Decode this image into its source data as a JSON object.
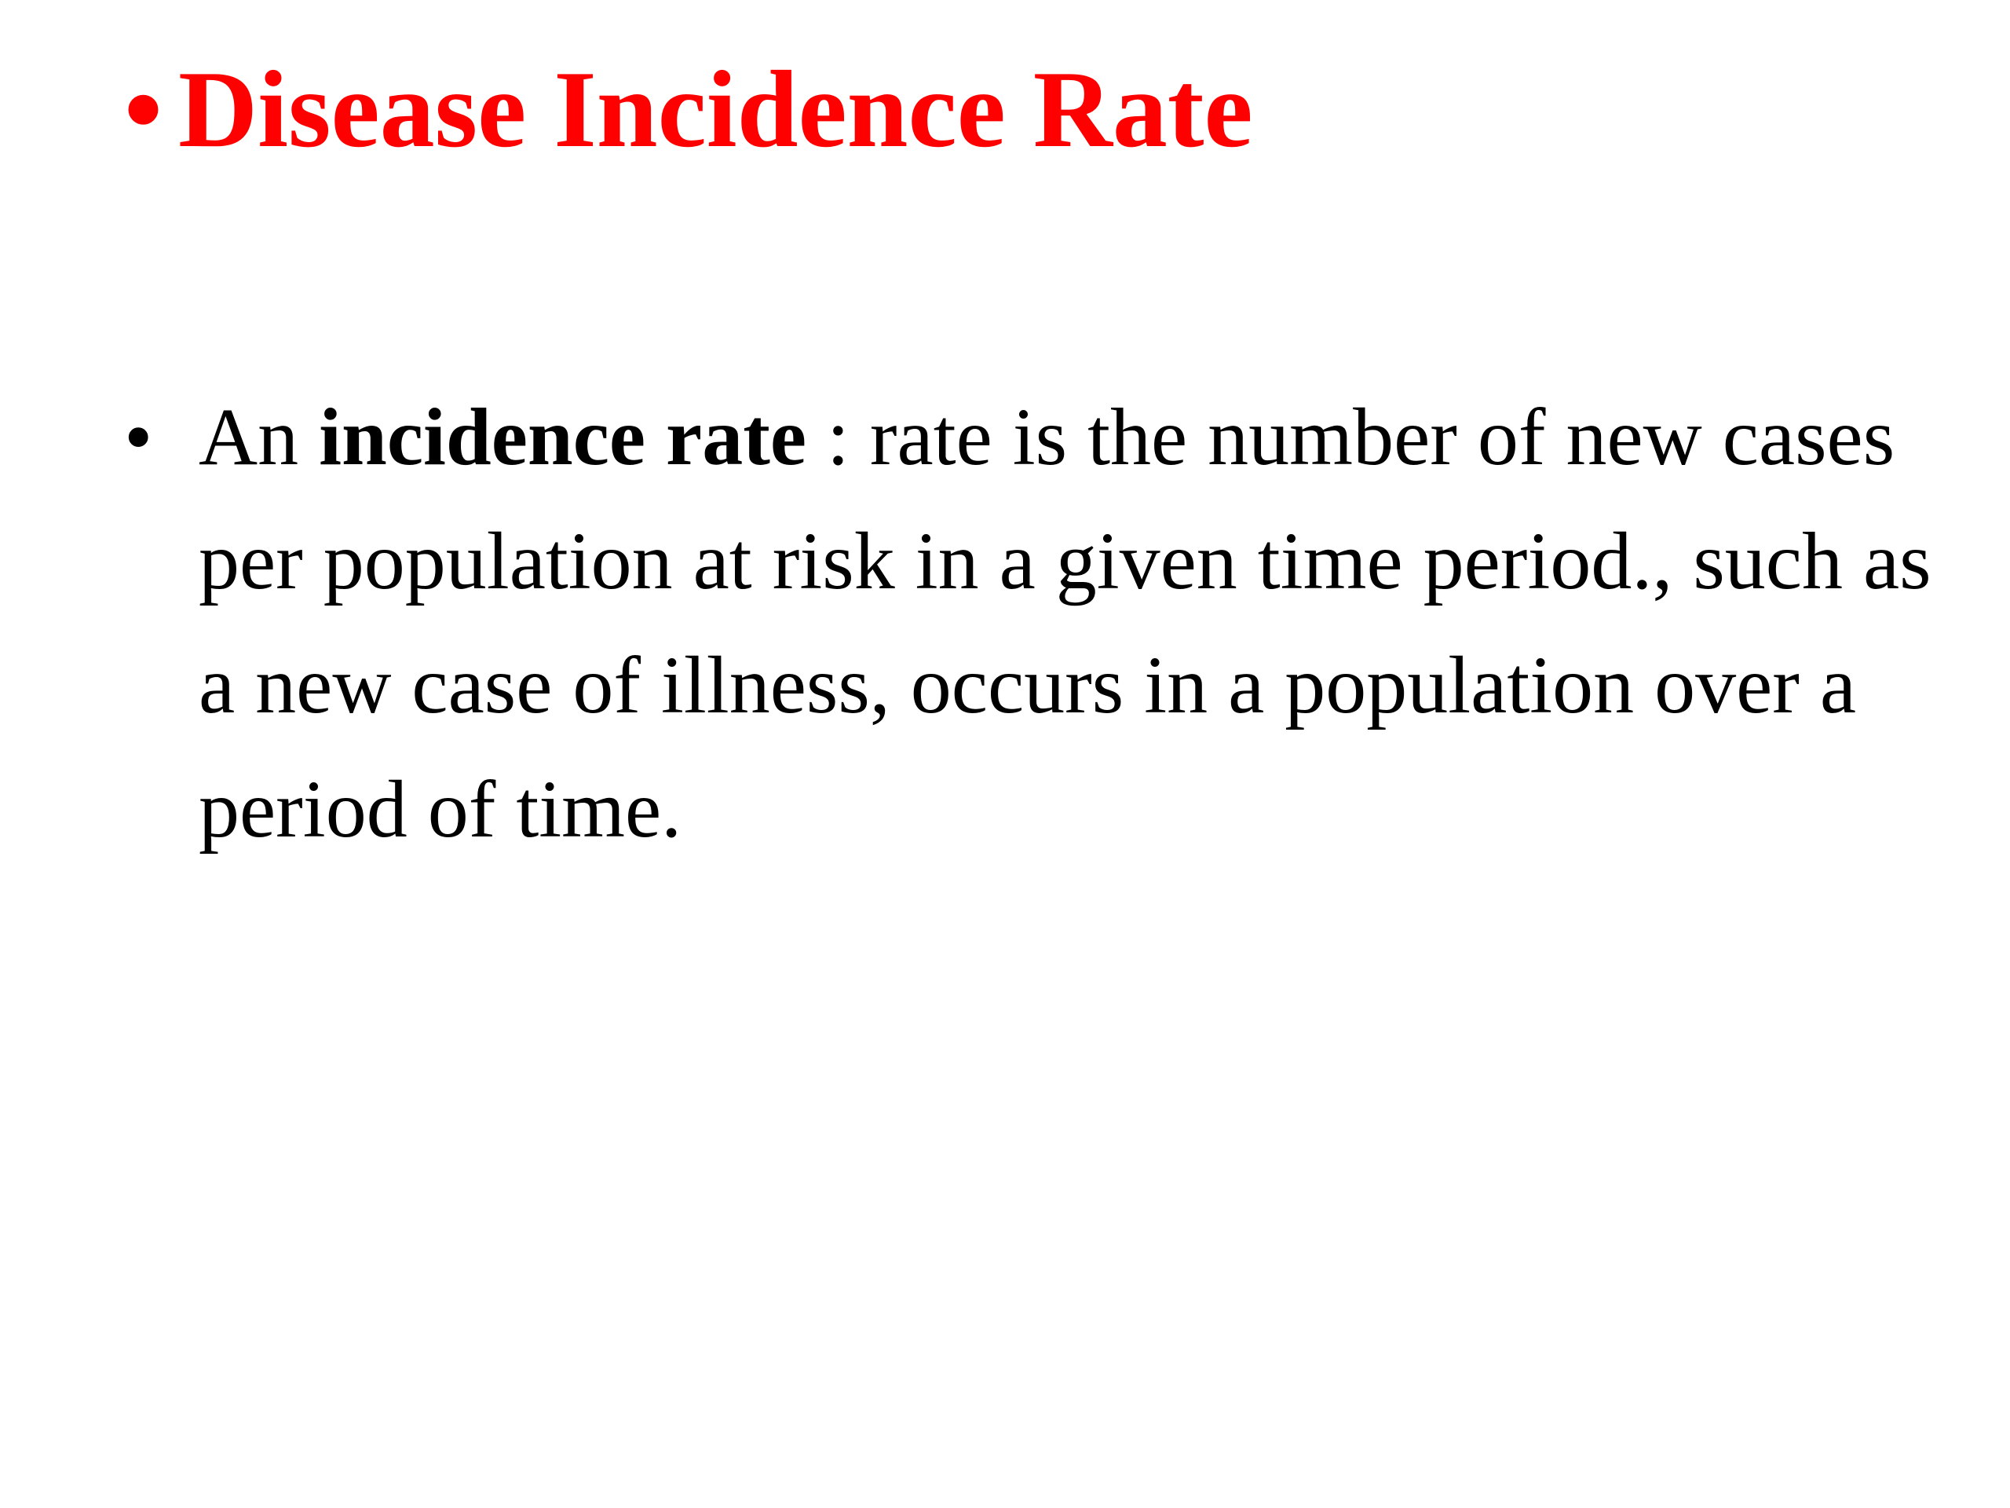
{
  "title": {
    "bullet": "•",
    "text": "Disease Incidence Rate",
    "color": "#ff0000"
  },
  "body": {
    "bullet": "•",
    "prefix": "An ",
    "term": "incidence rate",
    "suffix": " :  rate is the number of new cases per population at risk in a given time period., such as a new case of illness, occurs in a population over a period of time.",
    "color": "#000000"
  }
}
